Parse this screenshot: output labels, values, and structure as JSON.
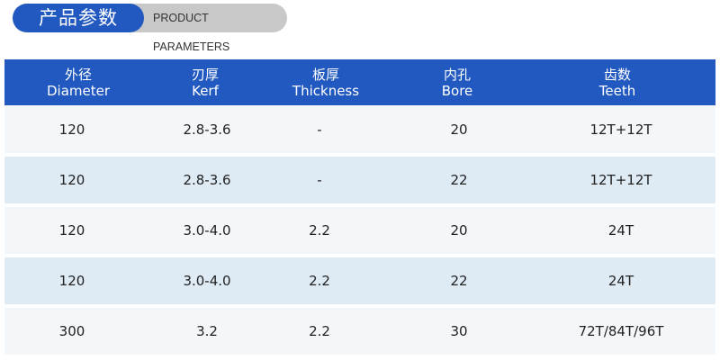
{
  "title": {
    "cn": "产品参数",
    "en": "PRODUCT PARAMETERS"
  },
  "columns": [
    {
      "cn": "外径",
      "en": "Diameter"
    },
    {
      "cn": "刃厚",
      "en": "Kerf"
    },
    {
      "cn": "板厚",
      "en": "Thickness"
    },
    {
      "cn": "内孔",
      "en": "Bore"
    },
    {
      "cn": "齿数",
      "en": "Teeth"
    }
  ],
  "rows": [
    [
      "120",
      "2.8-3.6",
      "-",
      "20",
      "12T+12T"
    ],
    [
      "120",
      "2.8-3.6",
      "-",
      "22",
      "12T+12T"
    ],
    [
      "120",
      "3.0-4.0",
      "2.2",
      "20",
      "24T"
    ],
    [
      "120",
      "3.0-4.0",
      "2.2",
      "22",
      "24T"
    ],
    [
      "300",
      "3.2",
      "2.2",
      "30",
      "72T/84T/96T"
    ]
  ],
  "colors": {
    "header": "#2159c0",
    "row_light": "#f4f7fa",
    "row_alt": "#deeaf4",
    "badge_gray": "#c8c8c8"
  }
}
